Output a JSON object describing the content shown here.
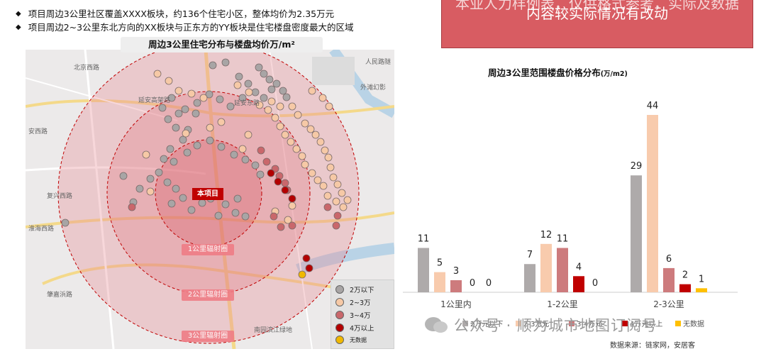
{
  "bullets": [
    "项目周边3公里社区覆盖XXXX板块，约136个住宅小区，整体均价为2.35万元",
    "项目周边2~3公里东北方向的XX板块与正东方的YY板块是住宅楼盘密度最大的区域"
  ],
  "banner": {
    "line1": "本业人力样例表，仅供格式参考，实际及数据",
    "line2": "内容较实际情况有改动"
  },
  "map": {
    "title": "周边3公里住宅分布与楼盘均价万/m²",
    "project_label": "本项目",
    "ring_labels": [
      "1公里辐射圈",
      "2公里辐射圈",
      "3公里辐射圈"
    ],
    "road_labels": [
      "北京西路",
      "延安高架路",
      "延安东路",
      "安西路",
      "复兴西路",
      "淮海西路",
      "肇嘉浜路",
      "人民路隧",
      "外滩幻影",
      "南园滨江绿地"
    ],
    "legend": [
      {
        "label": "2万以下",
        "color": "#a8a5a5"
      },
      {
        "label": "2~3万",
        "color": "#f6c9a6"
      },
      {
        "label": "3~4万",
        "color": "#c9676b"
      },
      {
        "label": "4万以上",
        "color": "#b30000"
      },
      {
        "label": "无数据",
        "color": "#f0b800"
      }
    ],
    "markers": {
      "grey": [
        [
          300,
          92
        ],
        [
          318,
          88
        ],
        [
          337,
          108
        ],
        [
          350,
          118
        ],
        [
          365,
          95
        ],
        [
          372,
          104
        ],
        [
          380,
          112
        ],
        [
          390,
          118
        ],
        [
          399,
          128
        ],
        [
          404,
          137
        ],
        [
          372,
          138
        ],
        [
          383,
          126
        ],
        [
          360,
          130
        ],
        [
          342,
          138
        ],
        [
          325,
          150
        ],
        [
          310,
          140
        ],
        [
          295,
          133
        ],
        [
          278,
          145
        ],
        [
          261,
          154
        ],
        [
          276,
          160
        ],
        [
          242,
          138
        ],
        [
          229,
          152
        ],
        [
          252,
          160
        ],
        [
          237,
          168
        ],
        [
          248,
          180
        ],
        [
          265,
          183
        ],
        [
          258,
          197
        ],
        [
          240,
          210
        ],
        [
          231,
          224
        ],
        [
          224,
          243
        ],
        [
          236,
          257
        ],
        [
          248,
          266
        ],
        [
          212,
          252
        ],
        [
          197,
          266
        ],
        [
          188,
          285
        ],
        [
          174,
          248
        ],
        [
          242,
          287
        ],
        [
          258,
          279
        ],
        [
          270,
          296
        ],
        [
          285,
          286
        ],
        [
          297,
          280
        ],
        [
          318,
          288
        ],
        [
          332,
          300
        ],
        [
          346,
          305
        ],
        [
          335,
          280
        ],
        [
          308,
          304
        ],
        [
          245,
          228
        ],
        [
          264,
          215
        ],
        [
          278,
          205
        ],
        [
          296,
          198
        ],
        [
          312,
          207
        ],
        [
          330,
          218
        ],
        [
          346,
          225
        ],
        [
          360,
          233
        ],
        [
          367,
          246
        ],
        [
          92,
          314
        ]
      ],
      "peach": [
        [
          222,
          104
        ],
        [
          238,
          114
        ],
        [
          252,
          128
        ],
        [
          270,
          132
        ],
        [
          287,
          138
        ],
        [
          335,
          120
        ],
        [
          351,
          130
        ],
        [
          383,
          143
        ],
        [
          395,
          150
        ],
        [
          412,
          150
        ],
        [
          420,
          162
        ],
        [
          430,
          174
        ],
        [
          438,
          182
        ],
        [
          445,
          190
        ],
        [
          452,
          200
        ],
        [
          458,
          212
        ],
        [
          463,
          222
        ],
        [
          466,
          236
        ],
        [
          470,
          250
        ],
        [
          476,
          260
        ],
        [
          482,
          272
        ],
        [
          490,
          282
        ],
        [
          484,
          292
        ],
        [
          474,
          284
        ],
        [
          462,
          276
        ],
        [
          456,
          262
        ],
        [
          448,
          254
        ],
        [
          440,
          244
        ],
        [
          430,
          232
        ],
        [
          426,
          220
        ],
        [
          418,
          210
        ],
        [
          410,
          200
        ],
        [
          402,
          190
        ],
        [
          395,
          178
        ],
        [
          388,
          166
        ],
        [
          378,
          155
        ],
        [
          366,
          148
        ],
        [
          350,
          190
        ],
        [
          342,
          210
        ],
        [
          312,
          172
        ],
        [
          296,
          180
        ],
        [
          262,
          188
        ],
        [
          206,
          218
        ],
        [
          212,
          270
        ],
        [
          412,
          290
        ],
        [
          406,
          310
        ],
        [
          388,
          298
        ],
        [
          440,
          128
        ],
        [
          455,
          138
        ],
        [
          464,
          150
        ]
      ],
      "red": [
        [
          368,
          212
        ],
        [
          376,
          228
        ],
        [
          388,
          238
        ],
        [
          394,
          248
        ],
        [
          402,
          258
        ],
        [
          405,
          268
        ],
        [
          386,
          305
        ],
        [
          396,
          320
        ],
        [
          412,
          318
        ],
        [
          186,
          292
        ],
        [
          476,
          304
        ],
        [
          462,
          292
        ],
        [
          474,
          318
        ]
      ],
      "darkred": [
        [
          382,
          244
        ],
        [
          392,
          256
        ],
        [
          402,
          268
        ],
        [
          412,
          280
        ],
        [
          432,
          364
        ],
        [
          436,
          378
        ]
      ],
      "yellow": [
        [
          426,
          387
        ]
      ]
    }
  },
  "chart_data": {
    "type": "bar",
    "title": "周边3公里范围楼盘价格分布",
    "unit_label": "(万/m2)",
    "categories": [
      "1公里内",
      "1-2公里",
      "2-3公里"
    ],
    "series": [
      {
        "name": "2万元以下",
        "color": "#aeaaaa",
        "values": [
          11,
          7,
          29
        ]
      },
      {
        "name": "2-3万元",
        "color": "#f8cbad",
        "values": [
          5,
          12,
          44
        ]
      },
      {
        "name": "3-4万元",
        "color": "#cd7b7d",
        "values": [
          3,
          11,
          6
        ]
      },
      {
        "name": "4万元以上",
        "color": "#c00000",
        "values": [
          0,
          4,
          2
        ]
      },
      {
        "name": "无数据",
        "color": "#ffc000",
        "values": [
          0,
          0,
          1
        ]
      }
    ],
    "ylim": [
      0,
      44
    ],
    "source": "数据来源：链家网，安居客"
  },
  "watermark": "公众号 · 顺为城市地图订阅号"
}
